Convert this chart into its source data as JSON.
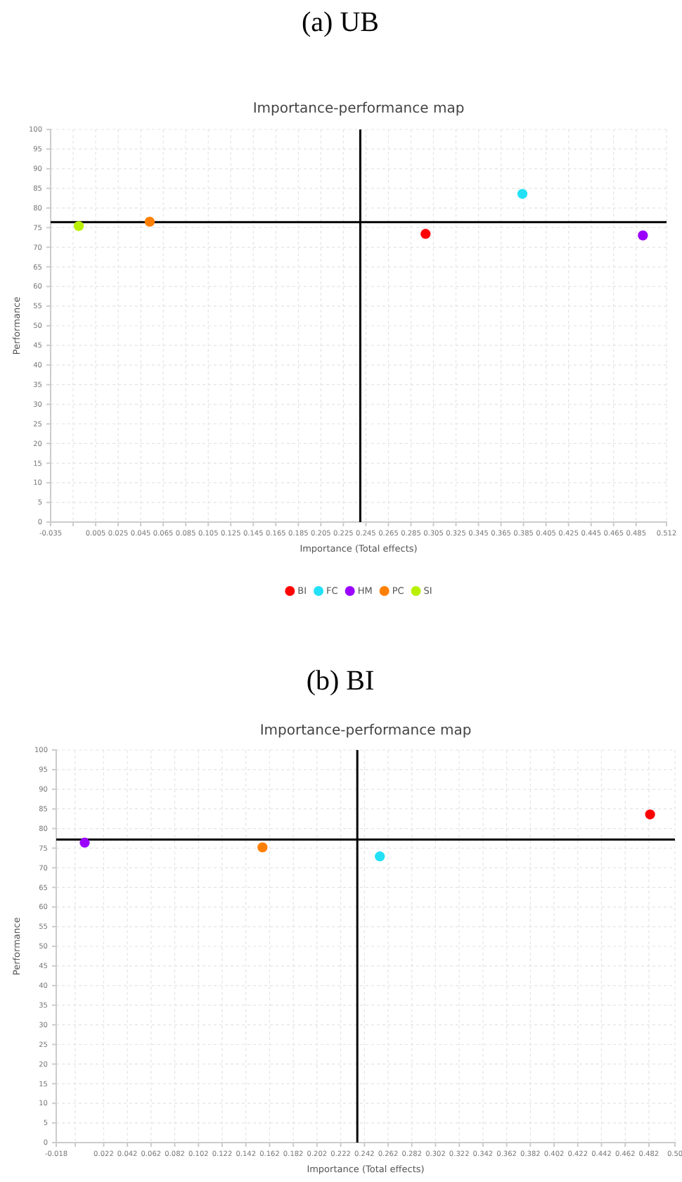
{
  "chart_data": [
    {
      "type": "scatter",
      "title": "(a)  UB",
      "subtitle": "Importance-performance map",
      "xlabel": "Importance (Total effects)",
      "ylabel": "Performance",
      "xlim": [
        -0.035,
        0.512
      ],
      "xticks": [
        -0.035,
        {
          "value": -0.015,
          "label": null
        },
        0.005,
        0.025,
        0.045,
        0.065,
        0.085,
        0.105,
        0.125,
        0.145,
        0.165,
        0.185,
        0.205,
        0.225,
        0.245,
        0.265,
        0.285,
        0.305,
        0.325,
        0.345,
        0.365,
        0.385,
        0.405,
        0.425,
        0.445,
        0.465,
        0.485,
        0.512
      ],
      "ylim": [
        0,
        100
      ],
      "yticks": [
        0,
        5,
        10,
        15,
        20,
        25,
        30,
        35,
        40,
        45,
        50,
        55,
        60,
        65,
        70,
        75,
        80,
        85,
        90,
        95,
        100
      ],
      "grid": true,
      "marker": "circle",
      "legend": "bottom",
      "ref_lines": [
        {
          "axis": "x",
          "value": 0.24,
          "color": "#000000"
        },
        {
          "axis": "y",
          "value": 76.4,
          "color": "#000000"
        }
      ],
      "series": [
        {
          "name": "BI",
          "color": "#ff0000",
          "x": [
            0.298
          ],
          "values": [
            73.4
          ]
        },
        {
          "name": "FC",
          "color": "#22e1f7",
          "x": [
            0.384
          ],
          "values": [
            83.6
          ]
        },
        {
          "name": "HM",
          "color": "#9b00ff",
          "x": [
            0.491
          ],
          "values": [
            73.0
          ]
        },
        {
          "name": "PC",
          "color": "#ff7f00",
          "x": [
            0.053
          ],
          "values": [
            76.5
          ]
        },
        {
          "name": "SI",
          "color": "#b9f000",
          "x": [
            -0.01
          ],
          "values": [
            75.4
          ]
        }
      ]
    },
    {
      "type": "scatter",
      "title": "(b)  BI",
      "subtitle": "Importance-performance map",
      "xlabel": "Importance (Total effects)",
      "ylabel": "Performance",
      "xlim": [
        -0.018,
        0.504
      ],
      "xticks": [
        -0.018,
        {
          "value": -0.002,
          "label": null
        },
        0.022,
        0.042,
        0.062,
        0.082,
        0.102,
        0.122,
        0.142,
        0.162,
        0.182,
        0.202,
        0.222,
        0.242,
        0.262,
        0.282,
        0.302,
        0.322,
        0.342,
        0.362,
        0.382,
        0.402,
        0.422,
        0.442,
        0.462,
        0.482,
        {
          "value": 0.504,
          "label": "0.50"
        }
      ],
      "ylim": [
        0,
        100
      ],
      "yticks": [
        0,
        5,
        10,
        15,
        20,
        25,
        30,
        35,
        40,
        45,
        50,
        55,
        60,
        65,
        70,
        75,
        80,
        85,
        90,
        95,
        100
      ],
      "grid": true,
      "marker": "circle",
      "ref_lines": [
        {
          "axis": "x",
          "value": 0.236,
          "color": "#000000"
        },
        {
          "axis": "y",
          "value": 77.2,
          "color": "#000000"
        }
      ],
      "series": [
        {
          "color": "#ff0000",
          "x": [
            0.483
          ],
          "values": [
            83.6
          ]
        },
        {
          "color": "#22e1f7",
          "x": [
            0.255
          ],
          "values": [
            72.9
          ]
        },
        {
          "color": "#9b00ff",
          "x": [
            0.006
          ],
          "values": [
            76.4
          ]
        },
        {
          "color": "#ff7f00",
          "x": [
            0.156
          ],
          "values": [
            75.2
          ]
        }
      ]
    }
  ]
}
